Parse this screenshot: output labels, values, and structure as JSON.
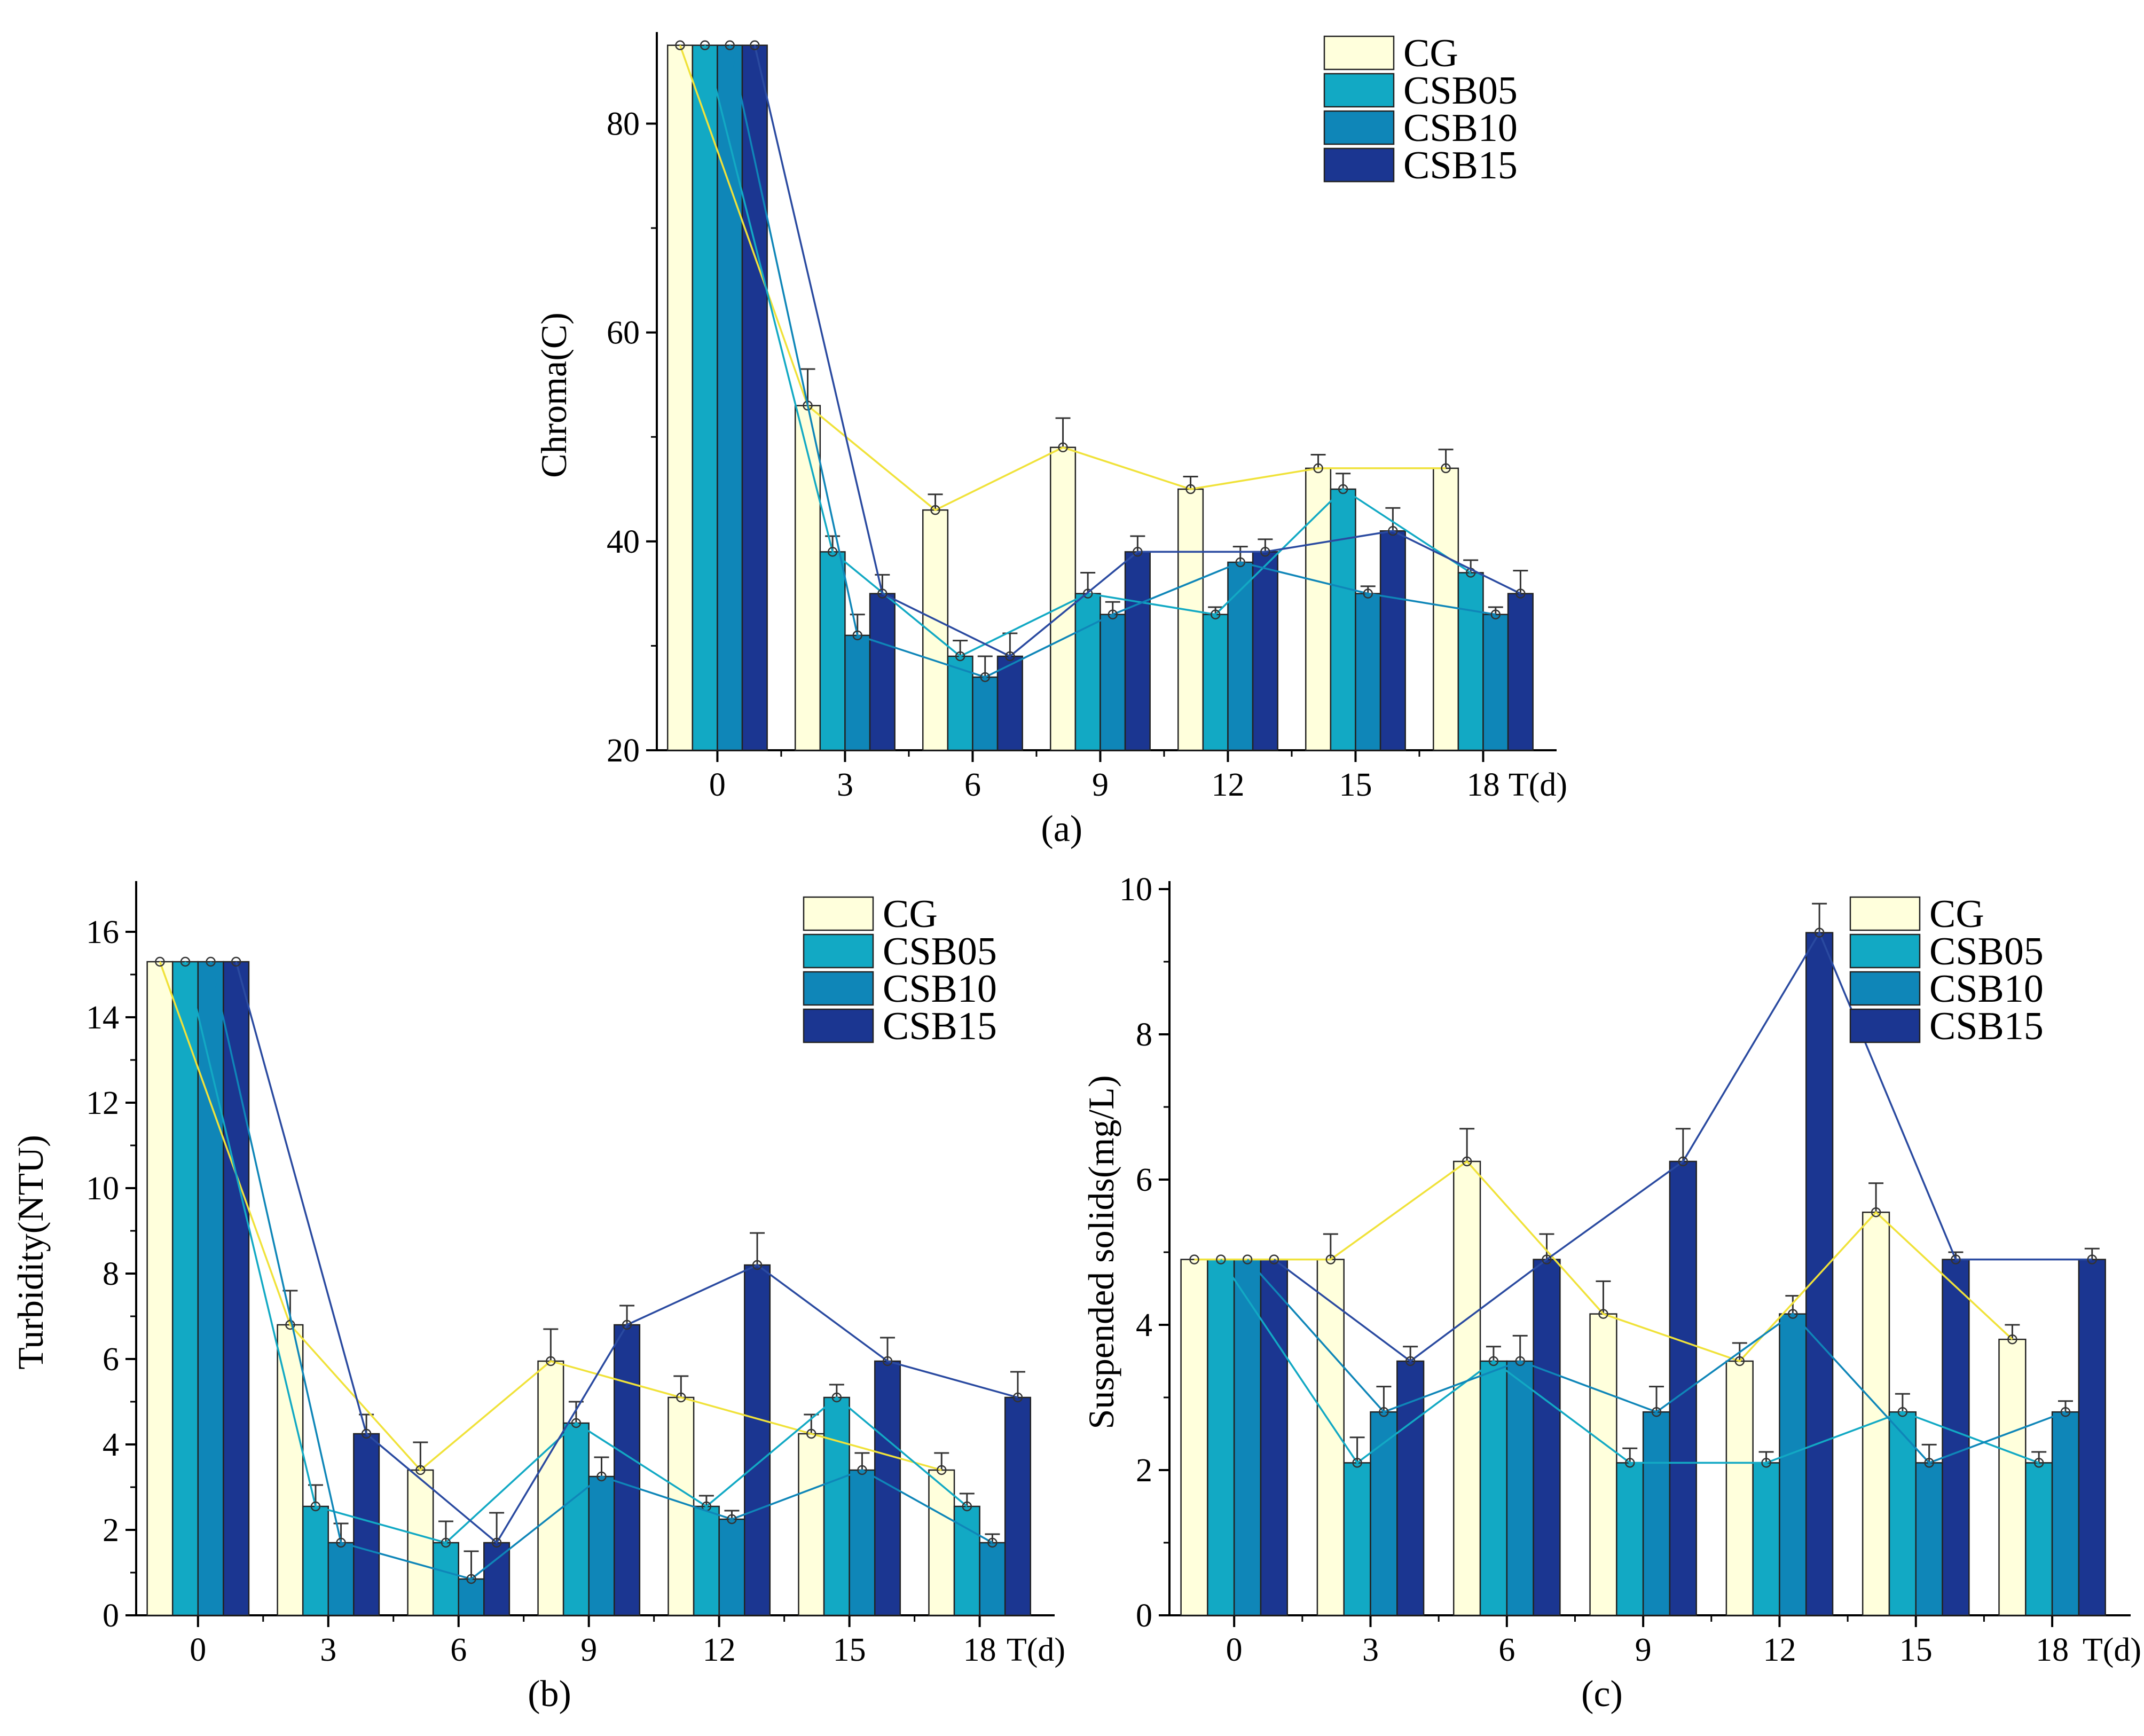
{
  "colors": {
    "CG": "#ffffdc",
    "CSB05": "#12a9c4",
    "CSB10": "#0f86b8",
    "CSB15": "#1b3691",
    "CG_line": "#f0e23a",
    "CSB05_line": "#12a9c4",
    "CSB10_line": "#0f86b8",
    "CSB15_line": "#2a4aa0"
  },
  "chart_data": [
    {
      "type": "bar",
      "panel_label": "(a)",
      "xlabel": "T(d)",
      "ylabel": "Chroma(C)",
      "ylim": [
        20,
        88
      ],
      "categories": [
        "0",
        "3",
        "6",
        "9",
        "12",
        "15",
        "18"
      ],
      "yticks": [
        "20",
        "40",
        "60",
        "80"
      ],
      "legend_position": "top-right",
      "series": [
        {
          "name": "CG",
          "values": [
            87.5,
            53,
            43,
            49,
            45,
            47,
            47
          ],
          "errors": [
            0,
            3.5,
            1.5,
            2.8,
            1.2,
            1.3,
            1.8
          ]
        },
        {
          "name": "CSB05",
          "values": [
            87.5,
            39,
            29,
            35,
            33,
            45,
            37
          ],
          "errors": [
            0,
            1.5,
            1.5,
            2,
            0.7,
            1.5,
            1.2
          ]
        },
        {
          "name": "CSB10",
          "values": [
            87.5,
            31,
            27,
            33,
            38,
            35,
            33
          ],
          "errors": [
            0,
            2,
            2,
            1.2,
            1.5,
            0.7,
            0.7
          ]
        },
        {
          "name": "CSB15",
          "values": [
            87.5,
            35,
            29,
            39,
            39,
            41,
            35
          ],
          "errors": [
            0,
            1.8,
            2.2,
            1.5,
            1.2,
            2.2,
            2.2
          ]
        }
      ]
    },
    {
      "type": "bar",
      "panel_label": "(b)",
      "xlabel": "T(d)",
      "ylabel": "Turbidity(NTU)",
      "ylim": [
        0,
        17
      ],
      "categories": [
        "0",
        "3",
        "6",
        "9",
        "12",
        "15",
        "18"
      ],
      "yticks": [
        "0",
        "2",
        "4",
        "6",
        "8",
        "10",
        "12",
        "14",
        "16"
      ],
      "legend_position": "top-right",
      "series": [
        {
          "name": "CG",
          "values": [
            15.3,
            6.8,
            3.4,
            5.95,
            5.1,
            4.25,
            3.4
          ],
          "errors": [
            0,
            0.8,
            0.65,
            0.75,
            0.5,
            0.45,
            0.4
          ]
        },
        {
          "name": "CSB05",
          "values": [
            15.3,
            2.55,
            1.7,
            4.5,
            2.55,
            5.1,
            2.55
          ],
          "errors": [
            0,
            0.5,
            0.5,
            0.5,
            0.25,
            0.3,
            0.3
          ]
        },
        {
          "name": "CSB10",
          "values": [
            15.3,
            1.7,
            0.85,
            3.25,
            2.25,
            3.4,
            1.7
          ],
          "errors": [
            0,
            0.45,
            0.65,
            0.45,
            0.2,
            0.4,
            0.2
          ]
        },
        {
          "name": "CSB15",
          "values": [
            15.3,
            4.25,
            1.7,
            6.8,
            8.2,
            5.95,
            5.1
          ],
          "errors": [
            0,
            0.45,
            0.7,
            0.45,
            0.75,
            0.55,
            0.6
          ]
        }
      ]
    },
    {
      "type": "bar",
      "panel_label": "(c)",
      "xlabel": "T(d)",
      "ylabel": "Suspended solids(mg/L)",
      "ylim": [
        0,
        10
      ],
      "categories": [
        "0",
        "3",
        "6",
        "9",
        "12",
        "15",
        "18"
      ],
      "yticks": [
        "0",
        "2",
        "4",
        "6",
        "8",
        "10"
      ],
      "legend_position": "top-right",
      "series": [
        {
          "name": "CG",
          "values": [
            4.9,
            4.9,
            6.25,
            4.15,
            3.5,
            5.55,
            3.8
          ],
          "errors": [
            0,
            0.35,
            0.45,
            0.45,
            0.25,
            0.4,
            0.2
          ]
        },
        {
          "name": "CSB05",
          "values": [
            4.9,
            2.1,
            3.5,
            2.1,
            2.1,
            2.8,
            2.1
          ],
          "errors": [
            0,
            0.35,
            0.2,
            0.2,
            0.15,
            0.25,
            0.15
          ]
        },
        {
          "name": "CSB10",
          "values": [
            4.9,
            2.8,
            3.5,
            2.8,
            4.15,
            2.1,
            2.8
          ],
          "errors": [
            0,
            0.35,
            0.35,
            0.35,
            0.25,
            0.25,
            0.15
          ]
        },
        {
          "name": "CSB15",
          "values": [
            4.9,
            3.5,
            4.9,
            6.25,
            9.4,
            4.9,
            4.9
          ],
          "errors": [
            0,
            0.2,
            0.35,
            0.45,
            0.4,
            0.1,
            0.15
          ]
        }
      ]
    }
  ]
}
